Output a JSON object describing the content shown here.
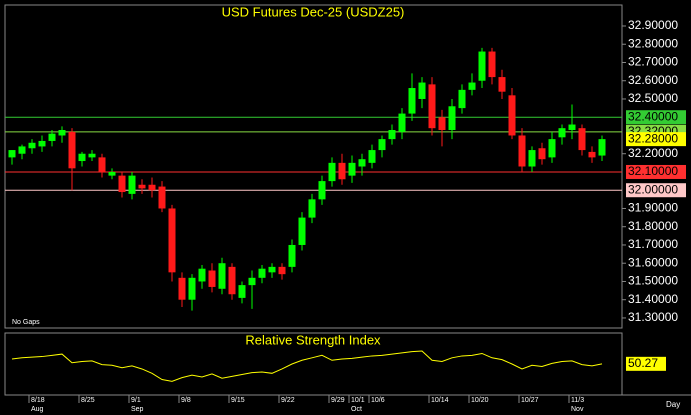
{
  "chart_data": [
    {
      "type": "candlestick",
      "title": "USD Futures Dec-25 (USDZ25)",
      "note": "No Gaps",
      "period": "Day",
      "categories": [
        null,
        null,
        "8/18",
        null,
        null,
        null,
        null,
        "8/25",
        null,
        null,
        null,
        null,
        "9/1",
        null,
        null,
        null,
        null,
        "9/8",
        null,
        null,
        null,
        null,
        "9/15",
        null,
        null,
        null,
        null,
        "9/22",
        null,
        null,
        null,
        null,
        "9/29",
        null,
        "10/1",
        null,
        "10/6",
        null,
        null,
        null,
        null,
        null,
        "10/14",
        null,
        null,
        null,
        "10/20",
        null,
        null,
        null,
        null,
        "10/27",
        null,
        null,
        null,
        null,
        "11/3",
        null,
        null,
        null
      ],
      "months": [
        null,
        null,
        "Aug",
        null,
        null,
        null,
        null,
        null,
        null,
        null,
        null,
        null,
        "Sep",
        null,
        null,
        null,
        null,
        null,
        null,
        null,
        null,
        null,
        null,
        null,
        null,
        null,
        null,
        null,
        null,
        null,
        null,
        null,
        null,
        null,
        "Oct",
        null,
        null,
        null,
        null,
        null,
        null,
        null,
        null,
        null,
        null,
        null,
        null,
        null,
        null,
        null,
        null,
        null,
        null,
        null,
        null,
        null,
        "Nov",
        null,
        null,
        null
      ],
      "open": [
        32.18,
        32.2,
        32.23,
        32.24,
        32.27,
        32.3,
        32.32,
        32.16,
        32.18,
        32.18,
        32.08,
        32.08,
        31.98,
        32.03,
        32.03,
        32.02,
        31.9,
        31.52,
        31.4,
        31.5,
        31.56,
        31.46,
        31.58,
        31.41,
        31.48,
        31.52,
        31.55,
        31.58,
        31.58,
        31.7,
        31.85,
        31.95,
        32.05,
        32.15,
        32.08,
        32.13,
        32.15,
        32.22,
        32.28,
        32.32,
        32.42,
        32.5,
        32.58,
        32.4,
        32.33,
        32.45,
        32.55,
        32.6,
        32.76,
        32.62,
        32.52,
        32.3,
        32.13,
        32.23,
        32.18,
        32.29,
        32.33,
        32.34,
        32.21,
        32.19
      ],
      "high": [
        32.22,
        32.25,
        32.28,
        32.3,
        32.33,
        32.35,
        32.34,
        32.21,
        32.22,
        32.2,
        32.12,
        32.1,
        32.1,
        32.06,
        32.07,
        32.05,
        31.92,
        31.55,
        31.54,
        31.59,
        31.6,
        31.63,
        31.6,
        31.5,
        31.56,
        31.59,
        31.6,
        31.6,
        31.73,
        31.88,
        31.98,
        32.08,
        32.18,
        32.2,
        32.19,
        32.2,
        32.25,
        32.3,
        32.36,
        32.45,
        32.64,
        32.62,
        32.62,
        32.44,
        32.5,
        32.58,
        32.64,
        32.78,
        32.78,
        32.66,
        32.56,
        32.34,
        32.24,
        32.26,
        32.32,
        32.36,
        32.47,
        32.36,
        32.24,
        32.3
      ],
      "low": [
        32.14,
        32.17,
        32.2,
        32.21,
        32.24,
        32.26,
        32.0,
        32.13,
        32.16,
        32.07,
        32.06,
        31.96,
        31.95,
        31.98,
        31.96,
        31.88,
        31.5,
        31.36,
        31.34,
        31.46,
        31.44,
        31.43,
        31.4,
        31.38,
        31.35,
        31.49,
        31.52,
        31.51,
        31.55,
        31.67,
        31.82,
        31.92,
        32.02,
        32.03,
        32.04,
        32.08,
        32.12,
        32.18,
        32.25,
        32.28,
        32.38,
        32.45,
        32.3,
        32.24,
        32.28,
        32.42,
        32.52,
        32.56,
        32.58,
        32.5,
        32.28,
        32.1,
        32.1,
        32.14,
        32.15,
        32.25,
        32.28,
        32.19,
        32.15,
        32.16
      ],
      "close": [
        32.22,
        32.24,
        32.26,
        32.27,
        32.31,
        32.33,
        32.12,
        32.2,
        32.2,
        32.1,
        32.1,
        31.99,
        32.08,
        32.01,
        32.0,
        31.9,
        31.55,
        31.4,
        31.52,
        31.57,
        31.47,
        31.6,
        31.43,
        31.48,
        31.52,
        31.57,
        31.58,
        31.54,
        31.7,
        31.85,
        31.95,
        32.05,
        32.15,
        32.06,
        32.15,
        32.17,
        32.22,
        32.28,
        32.33,
        32.42,
        32.56,
        32.59,
        32.34,
        32.33,
        32.46,
        32.55,
        32.59,
        32.76,
        32.62,
        32.54,
        32.3,
        32.13,
        32.22,
        32.17,
        32.28,
        32.34,
        32.36,
        32.22,
        32.18,
        32.28
      ],
      "ylim": [
        31.245,
        33.015
      ],
      "yticks": [
        {
          "value": 32.9,
          "label": "32.90000"
        },
        {
          "value": 32.8,
          "label": "32.80000"
        },
        {
          "value": 32.7,
          "label": "32.70000"
        },
        {
          "value": 32.6,
          "label": "32.60000"
        },
        {
          "value": 32.5,
          "label": "32.50000"
        },
        {
          "value": 32.2,
          "label": "32.20000"
        },
        {
          "value": 31.9,
          "label": "31.90000"
        },
        {
          "value": 31.8,
          "label": "31.80000"
        },
        {
          "value": 31.7,
          "label": "31.70000"
        },
        {
          "value": 31.6,
          "label": "31.60000"
        },
        {
          "value": 31.5,
          "label": "31.50000"
        },
        {
          "value": 31.4,
          "label": "31.40000"
        },
        {
          "value": 31.3,
          "label": "31.30000"
        }
      ],
      "levels": [
        {
          "value": 32.4,
          "label": "32.40000",
          "color": "#33cc33",
          "line": true
        },
        {
          "value": 32.32,
          "label": "32.32000",
          "color": "#88dd44",
          "line": true
        },
        {
          "value": 32.28,
          "label": "32.28000",
          "color": "#ffff00",
          "line": false
        },
        {
          "value": 32.1,
          "label": "32.10000",
          "color": "#ff3030",
          "line": true
        },
        {
          "value": 32.0,
          "label": "32.00000",
          "color": "#ffc8c8",
          "line": true
        }
      ],
      "up_color": "#00ff00",
      "down_color": "#ff1a1a"
    },
    {
      "type": "line",
      "title": "Relative Strength Index",
      "color": "#ffff00",
      "values": [
        58,
        60,
        61,
        62,
        64,
        66,
        52,
        54,
        55,
        49,
        48,
        44,
        47,
        42,
        35,
        25,
        22,
        28,
        32,
        29,
        34,
        27,
        30,
        33,
        36,
        37,
        35,
        42,
        50,
        56,
        60,
        64,
        56,
        58,
        59,
        61,
        63,
        64,
        66,
        68,
        70,
        71,
        56,
        54,
        60,
        63,
        64,
        67,
        60,
        57,
        50,
        42,
        48,
        46,
        51,
        54,
        55,
        49,
        47,
        50.27
      ],
      "ylim": [
        0,
        100
      ]
    }
  ]
}
